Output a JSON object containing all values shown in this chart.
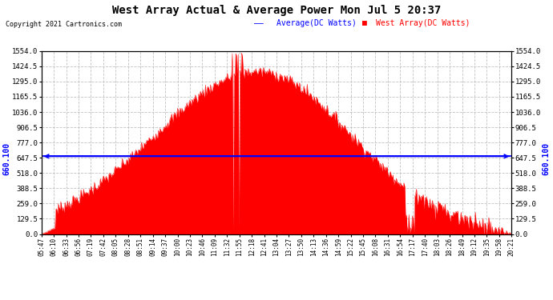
{
  "title": "West Array Actual & Average Power Mon Jul 5 20:37",
  "copyright": "Copyright 2021 Cartronics.com",
  "average_value": 660.1,
  "y_max": 1554.0,
  "y_min": 0.0,
  "y_ticks": [
    0.0,
    129.5,
    259.0,
    388.5,
    518.0,
    647.5,
    777.0,
    906.5,
    1036.0,
    1165.5,
    1295.0,
    1424.5,
    1554.0
  ],
  "x_labels": [
    "05:47",
    "06:10",
    "06:33",
    "06:56",
    "07:19",
    "07:42",
    "08:05",
    "08:28",
    "08:51",
    "09:14",
    "09:37",
    "10:00",
    "10:23",
    "10:46",
    "11:09",
    "11:32",
    "11:55",
    "12:18",
    "12:41",
    "13:04",
    "13:27",
    "13:50",
    "14:13",
    "14:36",
    "14:59",
    "15:22",
    "15:45",
    "16:08",
    "16:31",
    "16:54",
    "17:17",
    "17:40",
    "18:03",
    "18:26",
    "18:49",
    "19:12",
    "19:35",
    "19:58",
    "20:21"
  ],
  "bg_color": "#ffffff",
  "fill_color": "#ff0000",
  "avg_line_color": "#0000ff",
  "grid_color": "#bbbbbb",
  "title_color": "#000000",
  "legend_avg_color": "#0000ff",
  "legend_west_color": "#ff0000",
  "avg_label": "660.100"
}
